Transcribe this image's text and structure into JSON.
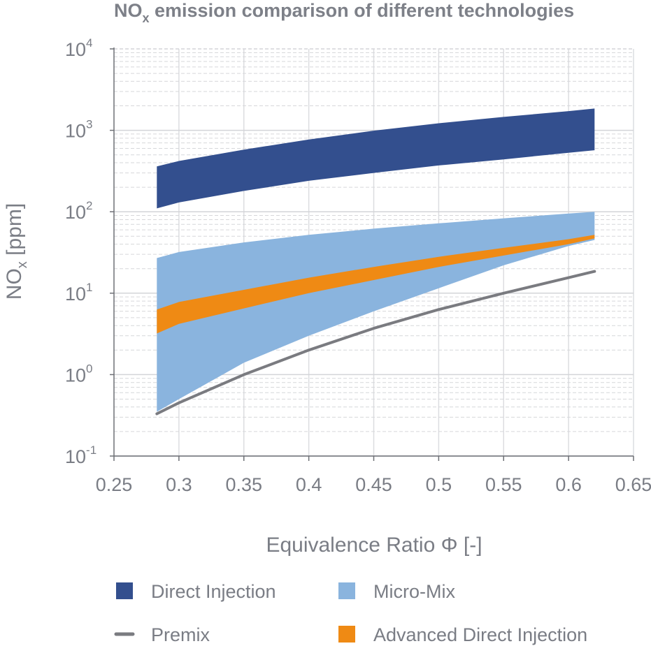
{
  "chart_data": {
    "type": "area",
    "title_main": "NO",
    "title_sub": "x",
    "title_rest": " emission comparison of different technologies",
    "xlabel": "Equivalence Ratio Φ [-]",
    "ylabel_main": "NO",
    "ylabel_sub": "x",
    "ylabel_rest": " [ppm]",
    "y_scale": "log",
    "xlim": [
      0.25,
      0.65
    ],
    "ylim": [
      0.1,
      10000
    ],
    "grid": true,
    "x_ticks": [
      0.25,
      0.3,
      0.35,
      0.4,
      0.45,
      0.5,
      0.55,
      0.6,
      0.65
    ],
    "x_tick_labels": [
      "0.25",
      "0.3",
      "0.35",
      "0.4",
      "0.45",
      "0.5",
      "0.55",
      "0.6",
      "0.65"
    ],
    "y_ticks": [
      {
        "base": "10",
        "exp": "-1",
        "value": 0.1
      },
      {
        "base": "10",
        "exp": "0",
        "value": 1
      },
      {
        "base": "10",
        "exp": "1",
        "value": 10
      },
      {
        "base": "10",
        "exp": "2",
        "value": 100
      },
      {
        "base": "10",
        "exp": "3",
        "value": 1000
      },
      {
        "base": "10",
        "exp": "4",
        "value": 10000
      }
    ],
    "series": [
      {
        "name": "Micro-Mix",
        "kind": "band",
        "color": "#8ab4de",
        "x": [
          0.283,
          0.3,
          0.35,
          0.4,
          0.45,
          0.5,
          0.55,
          0.6,
          0.62
        ],
        "upper": [
          27,
          32,
          42,
          52,
          62,
          72,
          83,
          95,
          100
        ],
        "lower": [
          0.35,
          0.5,
          1.4,
          3.0,
          6.0,
          11.5,
          22,
          38,
          45
        ]
      },
      {
        "name": "Advanced Direct Injection",
        "kind": "band",
        "color": "#ef8a14",
        "x": [
          0.283,
          0.3,
          0.35,
          0.4,
          0.45,
          0.5,
          0.55,
          0.6,
          0.62
        ],
        "upper": [
          6.3,
          7.8,
          11.0,
          15.5,
          21.0,
          28.0,
          36.0,
          46.0,
          52.0
        ],
        "lower": [
          3.2,
          4.2,
          6.5,
          10.0,
          14.5,
          21.0,
          29.0,
          40.0,
          47.0
        ]
      },
      {
        "name": "Direct Injection",
        "kind": "band",
        "color": "#334f8e",
        "x": [
          0.283,
          0.3,
          0.35,
          0.4,
          0.45,
          0.5,
          0.55,
          0.6,
          0.62
        ],
        "upper": [
          360,
          420,
          580,
          770,
          990,
          1220,
          1460,
          1720,
          1850
        ],
        "lower": [
          110,
          130,
          180,
          240,
          300,
          370,
          440,
          530,
          570
        ]
      },
      {
        "name": "Premix",
        "kind": "line",
        "color": "#7a7b80",
        "x": [
          0.283,
          0.3,
          0.35,
          0.4,
          0.45,
          0.5,
          0.55,
          0.6,
          0.62
        ],
        "y": [
          0.33,
          0.45,
          1.0,
          2.0,
          3.7,
          6.3,
          10.0,
          15.5,
          18.5
        ]
      }
    ],
    "legend": {
      "placement": "bottom",
      "items": [
        {
          "name": "Direct Injection",
          "symbol": "square",
          "color": "#334f8e"
        },
        {
          "name": "Micro-Mix",
          "symbol": "square",
          "color": "#8ab4de"
        },
        {
          "name": "Premix",
          "symbol": "line",
          "color": "#7a7b80"
        },
        {
          "name": "Advanced Direct Injection",
          "symbol": "square",
          "color": "#ef8a14"
        }
      ]
    }
  }
}
